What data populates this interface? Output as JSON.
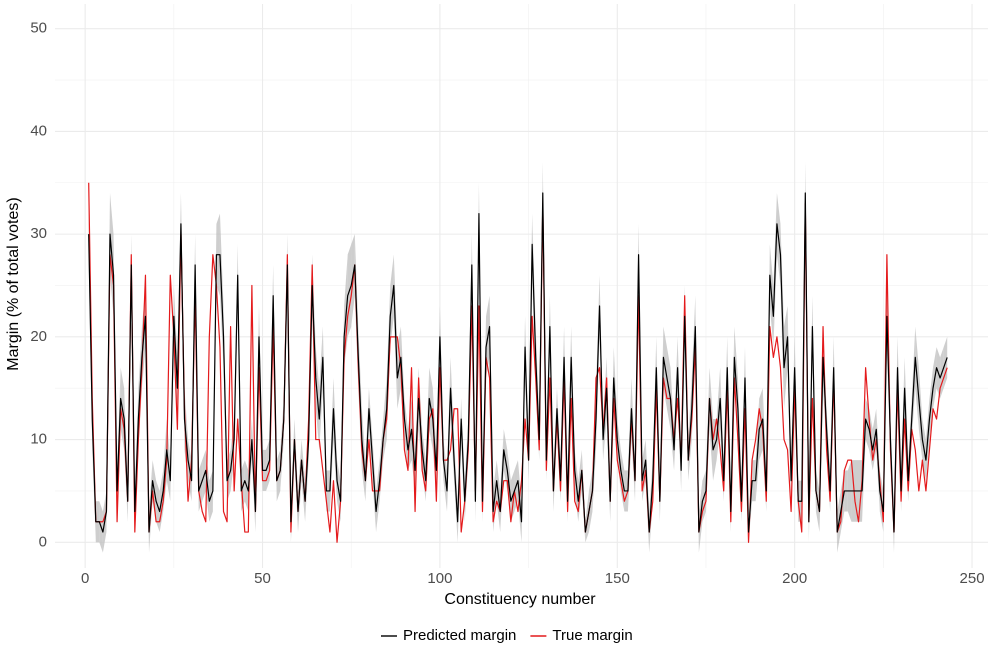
{
  "chart_data": {
    "type": "line",
    "x_label": "Constituency number",
    "y_label": "Margin (% of total votes)",
    "xlim": [
      -8.5,
      254.5
    ],
    "ylim": [
      -2.5,
      52.4
    ],
    "xticks": [
      0,
      50,
      100,
      150,
      200,
      250
    ],
    "yticks": [
      0,
      10,
      20,
      30,
      40,
      50
    ],
    "minor_xticks": [
      25,
      75,
      125,
      175,
      225
    ],
    "minor_yticks": [
      5,
      15,
      25,
      35,
      45
    ],
    "grid": true,
    "legend": "bottom",
    "band_color": "#bebebe",
    "x": [
      1,
      2,
      3,
      4,
      5,
      6,
      7,
      8,
      9,
      10,
      11,
      12,
      13,
      14,
      15,
      16,
      17,
      18,
      19,
      20,
      21,
      22,
      23,
      24,
      25,
      26,
      27,
      28,
      29,
      30,
      31,
      32,
      33,
      34,
      35,
      36,
      37,
      38,
      39,
      40,
      41,
      42,
      43,
      44,
      45,
      46,
      47,
      48,
      49,
      50,
      51,
      52,
      53,
      54,
      55,
      56,
      57,
      58,
      59,
      60,
      61,
      62,
      63,
      64,
      65,
      66,
      67,
      68,
      69,
      70,
      71,
      72,
      73,
      74,
      75,
      76,
      77,
      78,
      79,
      80,
      81,
      82,
      83,
      84,
      85,
      86,
      87,
      88,
      89,
      90,
      91,
      92,
      93,
      94,
      95,
      96,
      97,
      98,
      99,
      100,
      101,
      102,
      103,
      104,
      105,
      106,
      107,
      108,
      109,
      110,
      111,
      112,
      113,
      114,
      115,
      116,
      117,
      118,
      119,
      120,
      121,
      122,
      123,
      124,
      125,
      126,
      127,
      128,
      129,
      130,
      131,
      132,
      133,
      134,
      135,
      136,
      137,
      138,
      139,
      140,
      141,
      142,
      143,
      144,
      145,
      146,
      147,
      148,
      149,
      150,
      151,
      152,
      153,
      154,
      155,
      156,
      157,
      158,
      159,
      160,
      161,
      162,
      163,
      164,
      165,
      166,
      167,
      168,
      169,
      170,
      171,
      172,
      173,
      174,
      175,
      176,
      177,
      178,
      179,
      180,
      181,
      182,
      183,
      184,
      185,
      186,
      187,
      188,
      189,
      190,
      191,
      192,
      193,
      194,
      195,
      196,
      197,
      198,
      199,
      200,
      201,
      202,
      203,
      204,
      205,
      206,
      207,
      208,
      209,
      210,
      211,
      212,
      213,
      214,
      215,
      216,
      217,
      218,
      219,
      220,
      221,
      222,
      223,
      224,
      225,
      226,
      227,
      228,
      229,
      230,
      231,
      232,
      233,
      234,
      235,
      236,
      237,
      238,
      239,
      240,
      241,
      242,
      243
    ],
    "series": [
      {
        "name": "Predicted margin",
        "color": "#000000",
        "values": [
          30,
          12,
          2,
          2,
          1,
          3,
          30,
          26,
          5,
          14,
          12,
          4,
          27,
          3,
          12,
          18,
          22,
          1,
          6,
          4,
          3,
          5,
          9,
          6,
          22,
          15,
          31,
          12,
          8,
          6,
          27,
          5,
          6,
          7,
          4,
          5,
          28,
          28,
          20,
          6,
          7,
          10,
          26,
          5,
          6,
          5,
          10,
          3,
          20,
          7,
          7,
          8,
          24,
          6,
          7,
          12,
          27,
          2,
          10,
          3,
          8,
          4,
          10,
          25,
          16,
          12,
          18,
          5,
          5,
          13,
          6,
          4,
          20,
          24,
          25,
          27,
          18,
          10,
          6,
          13,
          8,
          3,
          6,
          10,
          13,
          22,
          25,
          16,
          18,
          12,
          9,
          11,
          7,
          14,
          9,
          6,
          14,
          12,
          7,
          20,
          8,
          5,
          15,
          8,
          2,
          12,
          4,
          10,
          27,
          4,
          32,
          4,
          19,
          21,
          3,
          6,
          3,
          9,
          7,
          4,
          5,
          6,
          2,
          19,
          8,
          29,
          18,
          10,
          34,
          8,
          21,
          5,
          13,
          6,
          18,
          4,
          18,
          7,
          4,
          7,
          1,
          3,
          5,
          12,
          23,
          10,
          15,
          4,
          16,
          10,
          7,
          5,
          5,
          13,
          6,
          28,
          6,
          8,
          1,
          6,
          17,
          4,
          18,
          16,
          14,
          9,
          17,
          7,
          22,
          8,
          13,
          21,
          1,
          4,
          5,
          14,
          9,
          10,
          14,
          6,
          17,
          3,
          18,
          13,
          4,
          16,
          1,
          6,
          6,
          11,
          12,
          5,
          26,
          22,
          31,
          28,
          17,
          20,
          6,
          17,
          4,
          4,
          34,
          2,
          21,
          5,
          3,
          18,
          11,
          5,
          17,
          1,
          3,
          5,
          5,
          5,
          5,
          5,
          5,
          12,
          11,
          9,
          11,
          5,
          3,
          22,
          10,
          1,
          17,
          5,
          15,
          6,
          12,
          18,
          14,
          10,
          8,
          12,
          15,
          17,
          16,
          17,
          18
        ],
        "errors": [
          3,
          3,
          2,
          2,
          2,
          2,
          4,
          4,
          2,
          3,
          3,
          2,
          3,
          2,
          3,
          3,
          3,
          2,
          2,
          2,
          2,
          2,
          3,
          2,
          3,
          3,
          3,
          3,
          2,
          2,
          3,
          2,
          2,
          2,
          2,
          2,
          3,
          4,
          3,
          2,
          2,
          2,
          3,
          2,
          2,
          2,
          2,
          2,
          3,
          2,
          2,
          2,
          3,
          2,
          2,
          2,
          3,
          2,
          2,
          2,
          2,
          2,
          2,
          3,
          3,
          3,
          3,
          2,
          2,
          3,
          2,
          2,
          3,
          4,
          4,
          3,
          3,
          3,
          2,
          2,
          2,
          2,
          2,
          2,
          3,
          3,
          3,
          3,
          3,
          2,
          2,
          3,
          2,
          3,
          2,
          2,
          3,
          3,
          2,
          3,
          2,
          2,
          3,
          2,
          2,
          2,
          2,
          2,
          3,
          2,
          3,
          2,
          3,
          3,
          2,
          2,
          2,
          2,
          2,
          2,
          2,
          2,
          2,
          3,
          2,
          3,
          3,
          2,
          3,
          2,
          3,
          2,
          2,
          2,
          3,
          2,
          3,
          2,
          2,
          2,
          1,
          2,
          2,
          3,
          3,
          2,
          3,
          2,
          3,
          2,
          2,
          2,
          2,
          3,
          2,
          3,
          2,
          2,
          2,
          2,
          3,
          2,
          3,
          3,
          3,
          2,
          3,
          2,
          3,
          2,
          3,
          3,
          2,
          2,
          2,
          3,
          3,
          2,
          3,
          2,
          3,
          2,
          3,
          3,
          2,
          3,
          1,
          2,
          2,
          3,
          3,
          2,
          3,
          3,
          3,
          3,
          4,
          3,
          2,
          3,
          2,
          2,
          3,
          2,
          3,
          2,
          2,
          3,
          2,
          2,
          3,
          2,
          2,
          2,
          2,
          3,
          3,
          3,
          3,
          2,
          2,
          2,
          2,
          2,
          2,
          3,
          2,
          2,
          3,
          2,
          3,
          2,
          2,
          3,
          3,
          2,
          2,
          2,
          2,
          2,
          2,
          2,
          2
        ]
      },
      {
        "name": "True margin",
        "color": "#e41a1c",
        "values": [
          35,
          14,
          2,
          2,
          2,
          3,
          28,
          25,
          2,
          13,
          11,
          4,
          28,
          1,
          10,
          17,
          26,
          1,
          5,
          2,
          2,
          4,
          8,
          26,
          20,
          11,
          30,
          13,
          4,
          8,
          24,
          5,
          3,
          2,
          20,
          28,
          25,
          19,
          3,
          2,
          21,
          5,
          12,
          6,
          1,
          1,
          25,
          3,
          17,
          6,
          6,
          7,
          21,
          6,
          7,
          12,
          28,
          1,
          10,
          3,
          8,
          4,
          12,
          27,
          10,
          10,
          7,
          4,
          1,
          6,
          0,
          4,
          18,
          22,
          24,
          27,
          17,
          9,
          6,
          10,
          5,
          5,
          5,
          10,
          12,
          20,
          20,
          20,
          17,
          9,
          7,
          17,
          3,
          16,
          7,
          5,
          12,
          13,
          4,
          17,
          8,
          8,
          9,
          13,
          13,
          1,
          4,
          9,
          23,
          5,
          23,
          3,
          18,
          16,
          2,
          4,
          3,
          6,
          6,
          2,
          5,
          3,
          6,
          12,
          8,
          22,
          16,
          9,
          33,
          7,
          16,
          5,
          12,
          5,
          16,
          3,
          14,
          4,
          3,
          7,
          1,
          3,
          5,
          16,
          17,
          11,
          16,
          4,
          14,
          8,
          6,
          4,
          5,
          12,
          6,
          24,
          5,
          7,
          1,
          4,
          15,
          4,
          16,
          14,
          14,
          10,
          14,
          8,
          24,
          8,
          12,
          19,
          1,
          3,
          4,
          14,
          10,
          12,
          9,
          5,
          15,
          2,
          16,
          10,
          3,
          13,
          0,
          8,
          10,
          13,
          11,
          4,
          21,
          18,
          20,
          17,
          10,
          9,
          3,
          15,
          4,
          1,
          33,
          2,
          14,
          5,
          3,
          21,
          9,
          4,
          16,
          1,
          2,
          7,
          8,
          8,
          4,
          2,
          6,
          17,
          12,
          8,
          10,
          6,
          2,
          28,
          9,
          1,
          15,
          4,
          12,
          5,
          11,
          9,
          5,
          8,
          5,
          9,
          13,
          12,
          15,
          16,
          17
        ]
      }
    ]
  }
}
